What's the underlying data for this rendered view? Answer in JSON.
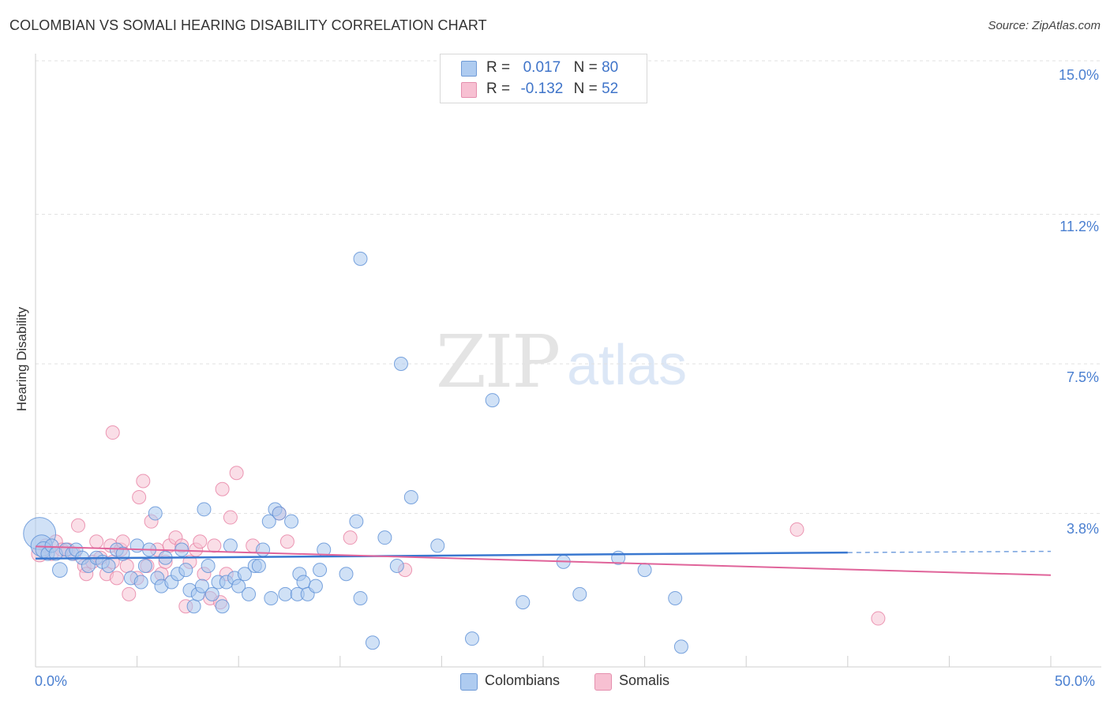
{
  "header": {
    "title": "COLOMBIAN VS SOMALI HEARING DISABILITY CORRELATION CHART",
    "source": "Source: ZipAtlas.com"
  },
  "watermark": {
    "zip": "ZIP",
    "atlas": "atlas"
  },
  "legend": {
    "r_label": "R =",
    "n_label": "N =",
    "rows": [
      {
        "r": "0.017",
        "n": "80",
        "color": "#aecbf0"
      },
      {
        "r": "-0.132",
        "n": "52",
        "color": "#f7c0d2"
      }
    ]
  },
  "bottom_legend": [
    {
      "label": "Colombians",
      "color": "#aecbf0"
    },
    {
      "label": "Somalis",
      "color": "#f7c0d2"
    }
  ],
  "colors": {
    "colombians_fill": "#a9c8ee",
    "colombians_stroke": "#5b8fd6",
    "colombians_line": "#3a78d0",
    "somalis_fill": "#f6c3d4",
    "somalis_stroke": "#e77fa3",
    "somalis_line": "#e0649a",
    "axis_text": "#4a7fd0"
  },
  "chart_data": {
    "type": "scatter",
    "title": "COLOMBIAN VS SOMALI HEARING DISABILITY CORRELATION CHART",
    "xlabel": "",
    "ylabel": "Hearing Disability",
    "xlim": [
      0,
      50
    ],
    "ylim": [
      0,
      15
    ],
    "x_tick_labels": [
      "0.0%",
      "50.0%"
    ],
    "y_tick_labels": [
      "3.8%",
      "7.5%",
      "11.2%",
      "15.0%"
    ],
    "y_ticks": [
      3.8,
      7.5,
      11.2,
      15.0
    ],
    "grid": true,
    "series": [
      {
        "name": "Colombians",
        "r": 0.017,
        "n": 80,
        "trend": {
          "x0": 0,
          "y0": 2.68,
          "x1": 40,
          "y1": 2.83,
          "dash_to": 50,
          "dash_y": 2.86
        },
        "points": [
          [
            0.2,
            3.3,
            2.4
          ],
          [
            0.3,
            3.0,
            1.6
          ],
          [
            0.4,
            2.9,
            1.2
          ],
          [
            0.6,
            2.8,
            1
          ],
          [
            0.8,
            3.0,
            1
          ],
          [
            1.0,
            2.8,
            1
          ],
          [
            1.2,
            2.4,
            1.1
          ],
          [
            1.5,
            2.9,
            1
          ],
          [
            1.8,
            2.8,
            1
          ],
          [
            2.0,
            2.9,
            1
          ],
          [
            2.3,
            2.7,
            1
          ],
          [
            2.6,
            2.5,
            1
          ],
          [
            3.0,
            2.7,
            1
          ],
          [
            3.3,
            2.6,
            1
          ],
          [
            3.6,
            2.5,
            1
          ],
          [
            4.0,
            2.9,
            1
          ],
          [
            4.3,
            2.8,
            1
          ],
          [
            4.7,
            2.2,
            1
          ],
          [
            5.0,
            3.0,
            1
          ],
          [
            5.2,
            2.1,
            1
          ],
          [
            5.4,
            2.5,
            1
          ],
          [
            5.6,
            2.9,
            1
          ],
          [
            5.9,
            3.8,
            1
          ],
          [
            6.0,
            2.2,
            1
          ],
          [
            6.2,
            2.0,
            1
          ],
          [
            6.4,
            2.7,
            1
          ],
          [
            6.7,
            2.1,
            1
          ],
          [
            7.0,
            2.3,
            1
          ],
          [
            7.2,
            2.9,
            1
          ],
          [
            7.4,
            2.4,
            1
          ],
          [
            7.6,
            1.9,
            1
          ],
          [
            7.8,
            1.5,
            1
          ],
          [
            8.0,
            1.8,
            1
          ],
          [
            8.2,
            2.0,
            1
          ],
          [
            8.3,
            3.9,
            1
          ],
          [
            8.5,
            2.5,
            1
          ],
          [
            8.7,
            1.8,
            1
          ],
          [
            9.0,
            2.1,
            1
          ],
          [
            9.2,
            1.5,
            1
          ],
          [
            9.4,
            2.1,
            1
          ],
          [
            9.6,
            3.0,
            1
          ],
          [
            9.8,
            2.2,
            1
          ],
          [
            10.0,
            2.0,
            1
          ],
          [
            10.3,
            2.3,
            1
          ],
          [
            10.5,
            1.8,
            1
          ],
          [
            10.8,
            2.5,
            1
          ],
          [
            11.0,
            2.5,
            1
          ],
          [
            11.2,
            2.9,
            1
          ],
          [
            11.5,
            3.6,
            1
          ],
          [
            11.6,
            1.7,
            1
          ],
          [
            11.8,
            3.9,
            1
          ],
          [
            12.0,
            3.8,
            1
          ],
          [
            12.3,
            1.8,
            1
          ],
          [
            12.6,
            3.6,
            1
          ],
          [
            12.9,
            1.8,
            1
          ],
          [
            13.0,
            2.3,
            1
          ],
          [
            13.2,
            2.1,
            1
          ],
          [
            13.4,
            1.8,
            1
          ],
          [
            13.8,
            2.0,
            1
          ],
          [
            14.0,
            2.4,
            1
          ],
          [
            14.2,
            2.9,
            1
          ],
          [
            15.3,
            2.3,
            1
          ],
          [
            15.8,
            3.6,
            1
          ],
          [
            16.0,
            1.7,
            1
          ],
          [
            16.0,
            10.1,
            1
          ],
          [
            16.6,
            0.6,
            1
          ],
          [
            17.2,
            3.2,
            1
          ],
          [
            17.8,
            2.5,
            1
          ],
          [
            18.0,
            7.5,
            1
          ],
          [
            18.5,
            4.2,
            1
          ],
          [
            19.8,
            3.0,
            1
          ],
          [
            21.5,
            0.7,
            1
          ],
          [
            22.5,
            6.6,
            1
          ],
          [
            24.0,
            1.6,
            1
          ],
          [
            26.0,
            2.6,
            1
          ],
          [
            26.8,
            1.8,
            1
          ],
          [
            28.7,
            2.7,
            1
          ],
          [
            30.0,
            2.4,
            1
          ],
          [
            31.5,
            1.7,
            1
          ],
          [
            31.8,
            0.5,
            1
          ]
        ]
      },
      {
        "name": "Somalis",
        "r": -0.132,
        "n": 52,
        "trend": {
          "x0": 0,
          "y0": 2.98,
          "x1": 50,
          "y1": 2.27
        },
        "points": [
          [
            0.2,
            2.8,
            1.2
          ],
          [
            0.5,
            3.0,
            1
          ],
          [
            0.8,
            2.8,
            1
          ],
          [
            1.0,
            3.1,
            1
          ],
          [
            1.3,
            2.9,
            1
          ],
          [
            1.6,
            2.9,
            1
          ],
          [
            1.9,
            2.8,
            1
          ],
          [
            2.1,
            3.5,
            1
          ],
          [
            2.4,
            2.5,
            1
          ],
          [
            2.5,
            2.3,
            1
          ],
          [
            2.8,
            2.6,
            1
          ],
          [
            3.0,
            3.1,
            1
          ],
          [
            3.2,
            2.7,
            1
          ],
          [
            3.5,
            2.3,
            1
          ],
          [
            3.7,
            3.0,
            1
          ],
          [
            3.8,
            2.6,
            1
          ],
          [
            3.8,
            5.8,
            1
          ],
          [
            4.0,
            2.2,
            1
          ],
          [
            4.2,
            2.9,
            1
          ],
          [
            4.3,
            3.1,
            1
          ],
          [
            4.5,
            2.5,
            1
          ],
          [
            4.6,
            1.8,
            1
          ],
          [
            5.0,
            2.2,
            1
          ],
          [
            5.1,
            4.2,
            1
          ],
          [
            5.3,
            4.6,
            1
          ],
          [
            5.5,
            2.5,
            1
          ],
          [
            5.7,
            3.6,
            1
          ],
          [
            6.0,
            2.9,
            1
          ],
          [
            6.2,
            2.3,
            1
          ],
          [
            6.4,
            2.6,
            1
          ],
          [
            6.6,
            3.0,
            1
          ],
          [
            6.9,
            3.2,
            1
          ],
          [
            7.2,
            3.0,
            1
          ],
          [
            7.4,
            1.5,
            1
          ],
          [
            7.6,
            2.6,
            1
          ],
          [
            7.9,
            2.9,
            1
          ],
          [
            8.1,
            3.1,
            1
          ],
          [
            8.3,
            2.3,
            1
          ],
          [
            8.6,
            1.7,
            1
          ],
          [
            8.8,
            3.0,
            1
          ],
          [
            9.1,
            1.6,
            1
          ],
          [
            9.4,
            2.3,
            1
          ],
          [
            9.6,
            3.7,
            1
          ],
          [
            9.9,
            4.8,
            1
          ],
          [
            10.7,
            3.0,
            1
          ],
          [
            12.0,
            3.8,
            1
          ],
          [
            12.4,
            3.1,
            1
          ],
          [
            15.5,
            3.2,
            1
          ],
          [
            18.2,
            2.4,
            1
          ],
          [
            9.2,
            4.4,
            1
          ],
          [
            37.5,
            3.4,
            1
          ],
          [
            41.5,
            1.2,
            1
          ]
        ]
      }
    ]
  }
}
